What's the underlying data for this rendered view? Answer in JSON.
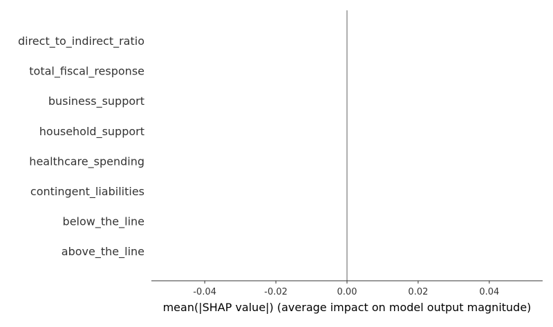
{
  "chart_data": {
    "type": "bar",
    "title": "",
    "xlabel": "mean(|SHAP value|) (average impact on model output magnitude)",
    "ylabel": "",
    "categories": [
      "direct_to_indirect_ratio",
      "total_fiscal_response",
      "business_support",
      "household_support",
      "healthcare_spending",
      "contingent_liabilities",
      "below_the_line",
      "above_the_line"
    ],
    "values": [
      0,
      0,
      0,
      0,
      0,
      0,
      0,
      0
    ],
    "xlim": [
      -0.055,
      0.055
    ],
    "xticks": [
      -0.04,
      -0.02,
      0.0,
      0.02,
      0.04
    ],
    "xtick_labels": [
      "-0.04",
      "-0.02",
      "0.00",
      "0.02",
      "0.04"
    ],
    "grid": false,
    "colors": {
      "bar": "#008bfb",
      "zero_line": "#999999",
      "axis": "#333333",
      "label_text": "#333333"
    }
  }
}
